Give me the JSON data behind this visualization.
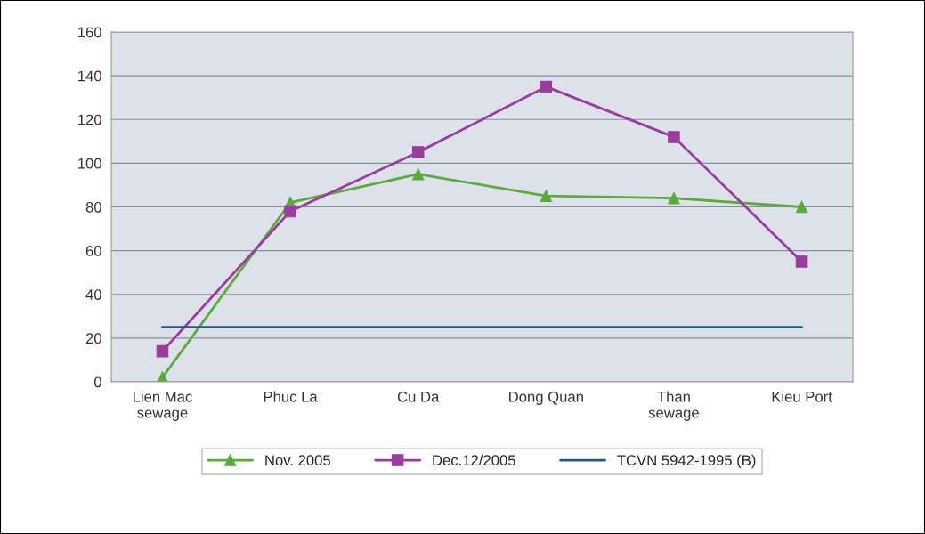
{
  "chart_data": {
    "type": "line",
    "categories": [
      "Lien Mac\nsewage",
      "Phuc La",
      "Cu Da",
      "Dong Quan",
      "Than\nsewage",
      "Kieu Port"
    ],
    "series": [
      {
        "name": "Nov. 2005",
        "color": "#5aab3c",
        "marker": "triangle",
        "values": [
          2,
          82,
          95,
          85,
          84,
          80
        ]
      },
      {
        "name": "Dec.12/2005",
        "color": "#9a3b9e",
        "marker": "square",
        "values": [
          14,
          78,
          105,
          135,
          112,
          55
        ]
      },
      {
        "name": "TCVN 5942-1995 (B)",
        "color": "#2a5580",
        "marker": "none",
        "values": [
          25,
          25,
          25,
          25,
          25,
          25
        ]
      }
    ],
    "ylim": [
      0,
      160
    ],
    "yticks": [
      0,
      20,
      40,
      60,
      80,
      100,
      120,
      140,
      160
    ],
    "grid": "y",
    "legend": "bottom",
    "line_style": "solid"
  }
}
